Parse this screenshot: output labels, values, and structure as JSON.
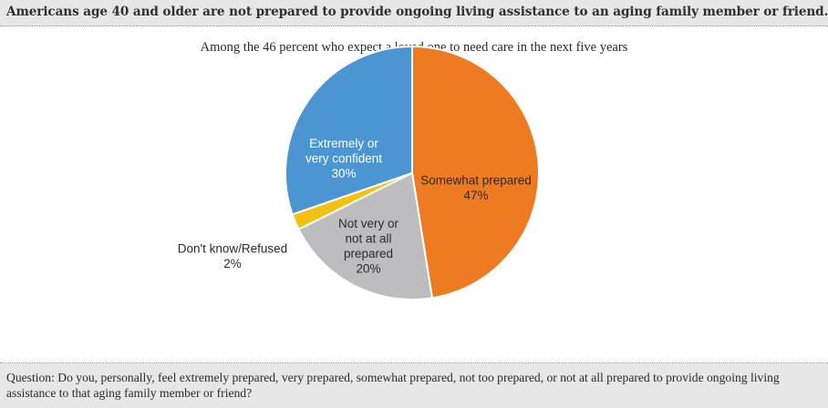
{
  "header": {
    "title": "Americans age 40 and older are not prepared to provide ongoing living assistance to an aging family member or friend."
  },
  "footer": {
    "question": "Question: Do you, personally, feel extremely prepared, very prepared, somewhat prepared, not too prepared, or not at all prepared to provide ongoing living assistance to that aging family member or friend?"
  },
  "chart_data": {
    "type": "pie",
    "title": "",
    "subtitle": "Among the 46 percent who expect a loved one to need care in the next five years",
    "slices": [
      {
        "label_lines": [
          "Somewhat prepared"
        ],
        "value": 47,
        "value_label": "47%",
        "color": "#ee7a22"
      },
      {
        "label_lines": [
          "Not very or",
          "not at all",
          "prepared"
        ],
        "value": 20,
        "value_label": "20%",
        "color": "#bdbdbf"
      },
      {
        "label_lines": [
          "Don't know/Refused"
        ],
        "value": 2,
        "value_label": "2%",
        "color": "#f5c014"
      },
      {
        "label_lines": [
          "Extremely or",
          "very confident"
        ],
        "value": 30,
        "value_label": "30%",
        "color": "#4b95d2"
      }
    ],
    "start_angle_deg": 0,
    "direction": "clockwise",
    "slice_border_color": "#ffffff"
  }
}
